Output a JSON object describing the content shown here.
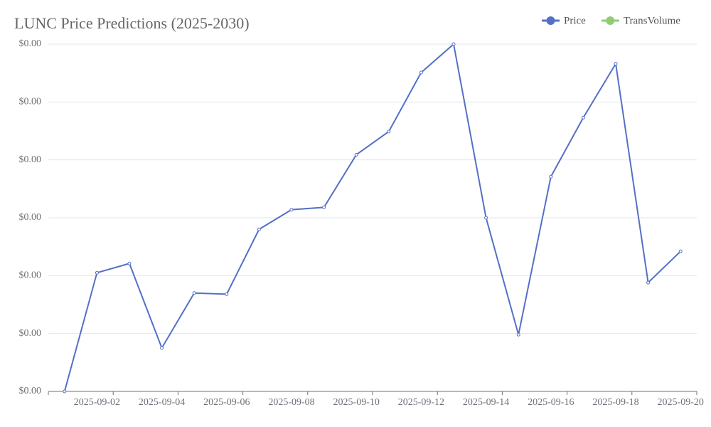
{
  "chart_data": {
    "type": "line",
    "title": "LUNC Price Predictions (2025-2030)",
    "categories": [
      null,
      "2025-09-02",
      null,
      "2025-09-04",
      null,
      "2025-09-06",
      null,
      "2025-09-08",
      null,
      "2025-09-10",
      null,
      "2025-09-12",
      null,
      "2025-09-14",
      null,
      "2025-09-16",
      null,
      "2025-09-18",
      null,
      "2025-09-20"
    ],
    "series": [
      {
        "name": "Price",
        "color": "#5470c6",
        "values": [
          0,
          2.05e-05,
          2.21e-05,
          7.5e-06,
          1.7e-05,
          1.68e-05,
          2.8e-05,
          3.14e-05,
          3.18e-05,
          4.09e-05,
          4.49e-05,
          5.51e-05,
          6e-05,
          3e-05,
          9.8e-06,
          3.71e-05,
          4.73e-05,
          5.66e-05,
          1.88e-05,
          2.42e-05
        ]
      },
      {
        "name": "TransVolume",
        "color": "#91cc75",
        "values": [
          null,
          null,
          null,
          null,
          null,
          null,
          null,
          null,
          null,
          null,
          null,
          null,
          null,
          null,
          null,
          null,
          null,
          null,
          null,
          null
        ]
      }
    ],
    "ylim": [
      0,
      6e-05
    ],
    "yticks": [
      {
        "value": 0,
        "label": "$0.00"
      },
      {
        "value": 1e-05,
        "label": "$0.00"
      },
      {
        "value": 2e-05,
        "label": "$0.00"
      },
      {
        "value": 3e-05,
        "label": "$0.00"
      },
      {
        "value": 4e-05,
        "label": "$0.00"
      },
      {
        "value": 5e-05,
        "label": "$0.00"
      },
      {
        "value": 6e-05,
        "label": "$0.00"
      }
    ],
    "grid": true,
    "legend": "top-right"
  }
}
